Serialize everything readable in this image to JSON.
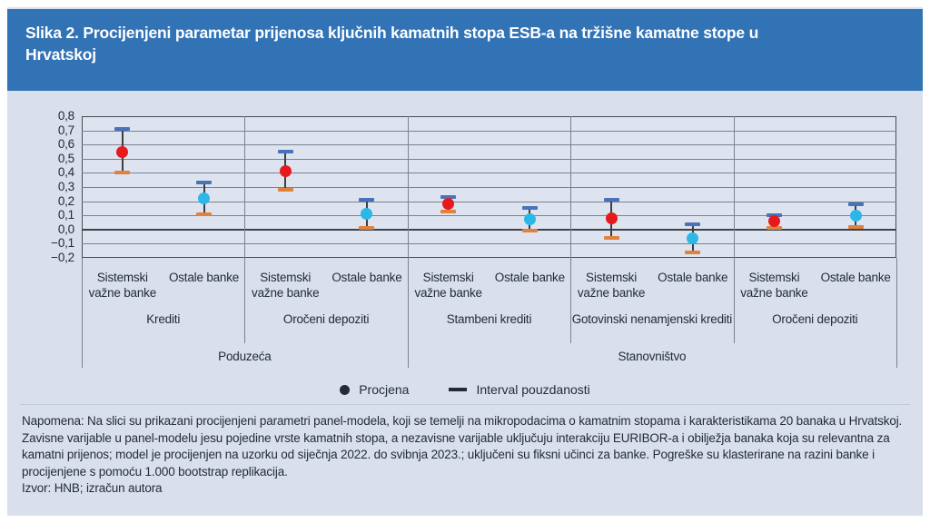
{
  "header": {
    "title": "Slika 2. Procijenjeni parametar prijenosa ključnih kamatnih stopa ESB-a na tržišne kamatne stope u Hrvatskoj"
  },
  "chart_data": {
    "type": "scatter",
    "marker_style": "estimate-dot-with-confidence-interval",
    "ylim": [
      -0.2,
      0.8
    ],
    "ytick_step": 0.1,
    "ytick_labels": [
      "0,8",
      "0,7",
      "0,6",
      "0,5",
      "0,4",
      "0,3",
      "0,2",
      "0,1",
      "0,0",
      "−0,1",
      "−0,2"
    ],
    "grid": true,
    "legend_position": "bottom-center",
    "legend": [
      {
        "label": "Procjena",
        "marker": "dot"
      },
      {
        "label": "Interval pouzdanosti",
        "marker": "dash"
      }
    ],
    "sectors": [
      {
        "label": "Poduzeća",
        "products": [
          {
            "label": "Krediti",
            "points": [
              {
                "bank": "Sistemski važne banke",
                "estimate": 0.55,
                "ci_low": 0.4,
                "ci_high": 0.71
              },
              {
                "bank": "Ostale banke",
                "estimate": 0.22,
                "ci_low": 0.11,
                "ci_high": 0.33
              }
            ]
          },
          {
            "label": "Oročeni depoziti",
            "points": [
              {
                "bank": "Sistemski važne banke",
                "estimate": 0.41,
                "ci_low": 0.28,
                "ci_high": 0.55
              },
              {
                "bank": "Ostale banke",
                "estimate": 0.11,
                "ci_low": 0.01,
                "ci_high": 0.21
              }
            ]
          }
        ]
      },
      {
        "label": "Stanovništvo",
        "products": [
          {
            "label": "Stambeni krediti",
            "points": [
              {
                "bank": "Sistemski važne banke",
                "estimate": 0.18,
                "ci_low": 0.13,
                "ci_high": 0.23
              },
              {
                "bank": "Ostale banke",
                "estimate": 0.07,
                "ci_low": -0.01,
                "ci_high": 0.15
              }
            ]
          },
          {
            "label": "Gotovinski nenamjenski krediti",
            "points": [
              {
                "bank": "Sistemski važne banke",
                "estimate": 0.08,
                "ci_low": -0.06,
                "ci_high": 0.21
              },
              {
                "bank": "Ostale banke",
                "estimate": -0.06,
                "ci_low": -0.16,
                "ci_high": 0.04
              }
            ]
          },
          {
            "label": "Oročeni depoziti",
            "points": [
              {
                "bank": "Sistemski važne banke",
                "estimate": 0.06,
                "ci_low": 0.01,
                "ci_high": 0.1
              },
              {
                "bank": "Ostale banke",
                "estimate": 0.1,
                "ci_low": 0.02,
                "ci_high": 0.18
              }
            ]
          }
        ]
      }
    ]
  },
  "note": {
    "napomena": "Napomena: Na slici su prikazani procijenjeni parametri panel-modela, koji se temelji na mikropodacima o kamatnim stopama i karakteristikama 20 banaka u Hrvatskoj. Zavisne varijable u panel-modelu jesu pojedine vrste kamatnih stopa, a nezavisne varijable uključuju interakciju EURIBOR-a i obilježja banaka koja su relevantna za kamatni prijenos; model je procijenjen na uzorku od siječnja 2022. do svibnja 2023.; uključeni su fiksni učinci za banke. Pogreške su klasterirane na razini banke i procijenjene s pomoću 1.000 bootstrap replikacija.",
    "izvor": "Izvor: HNB; izračun autora"
  },
  "colors": {
    "header_bg": "#3273b5",
    "figure_bg": "#d9e0ec",
    "title_text": "#ffffff",
    "text": "#232b3a",
    "grid": "#7b8290",
    "axis": "#3d424c",
    "estimate_sistemski": "#e8191c",
    "estimate_ostale": "#2bb8e8",
    "ci_cap_top": "#4a72b8",
    "ci_cap_bottom": "#e0813c",
    "ci_line": "#3f3f3f",
    "legend_marker": "#232a38"
  }
}
